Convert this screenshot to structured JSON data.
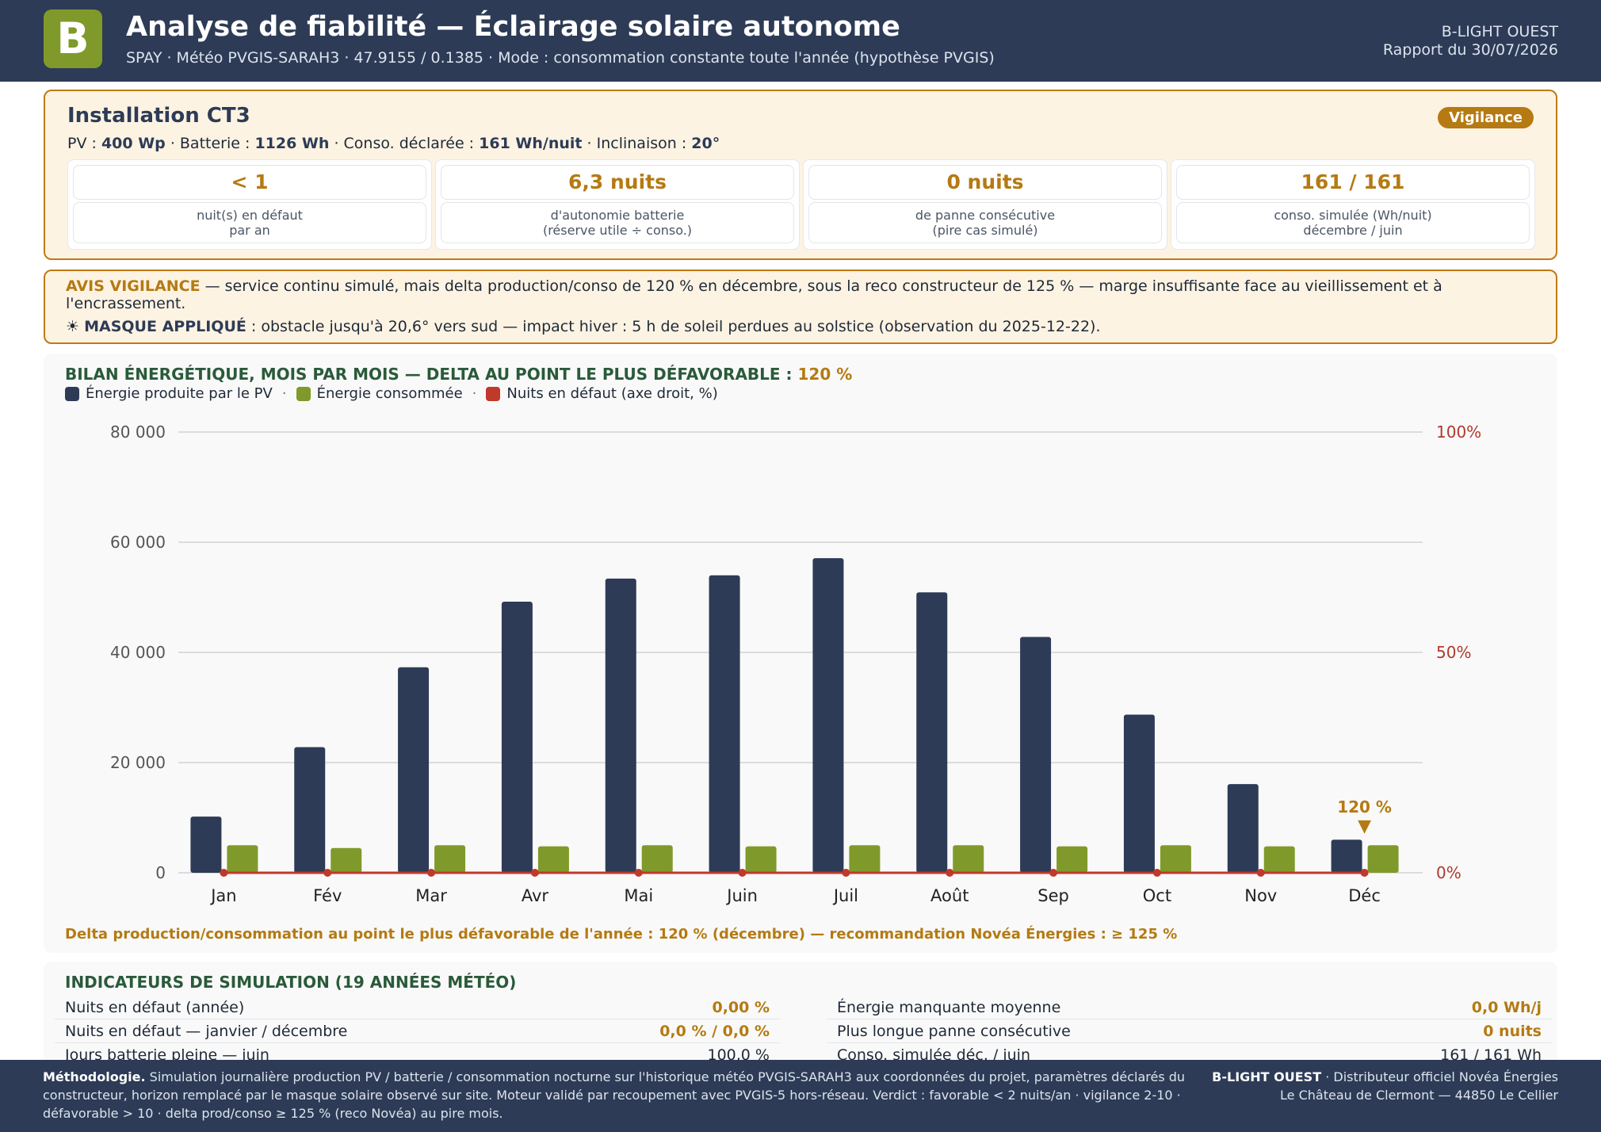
{
  "header": {
    "logo_letter": "B",
    "title": "Analyse de fiabilité — Éclairage solaire autonome",
    "subtitle": "SPAY · Météo PVGIS-SARAH3 · 47.9155 / 0.1385 · Mode : consommation constante toute l'année (hypothèse PVGIS)",
    "company": "B-LIGHT OUEST",
    "report_date": "Rapport du 30/07/2026"
  },
  "installation": {
    "title": "Installation CT3",
    "badge": "Vigilance",
    "pv_label": "PV : ",
    "pv_value": "400 Wp",
    "battery_label": " · Batterie : ",
    "battery_value": "1126 Wh",
    "conso_label": " · Conso. déclarée : ",
    "conso_value": "161 Wh/nuit",
    "tilt_label": " · Inclinaison : ",
    "tilt_value": "20°",
    "kpis": [
      {
        "value": "< 1",
        "label1": "nuit(s) en défaut",
        "label2": "par an"
      },
      {
        "value": "6,3 nuits",
        "label1": "d'autonomie batterie",
        "label2": "(réserve utile ÷ conso.)"
      },
      {
        "value": "0 nuits",
        "label1": "de panne consécutive",
        "label2": "(pire cas simulé)"
      },
      {
        "value": "161 / 161",
        "label1": "conso. simulée (Wh/nuit)",
        "label2": "décembre / juin"
      }
    ]
  },
  "avis": {
    "label": "AVIS VIGILANCE",
    "text": " — service continu simulé, mais delta production/conso de 120 % en décembre, sous la reco constructeur de 125 % — marge insuffisante face au vieillissement et à l'encrassement.",
    "mask_icon": "☀",
    "mask_label": "MASQUE APPLIQUÉ",
    "mask_text": " : obstacle jusqu'à 20,6° vers sud — impact hiver : 5 h de soleil perdues au solstice (observation du 2025-12-22)."
  },
  "chart_section": {
    "title": "BILAN ÉNERGÉTIQUE, MOIS PAR MOIS — DELTA AU POINT LE PLUS DÉFAVORABLE : ",
    "title_value": "120 %",
    "legend_sep": "·",
    "note": "Delta production/consommation au point le plus défavorable de l'année : 120 % (décembre) — recommandation Novéa Énergies : ≥ 125 %",
    "colors": {
      "production": "#2d3b56",
      "consumption": "#7f9a2a",
      "default": "#c0392b",
      "annotation": "#b57a12"
    }
  },
  "chart_data": {
    "type": "bar",
    "categories": [
      "Jan",
      "Fév",
      "Mar",
      "Avr",
      "Mai",
      "Juin",
      "Juil",
      "Août",
      "Sep",
      "Oct",
      "Nov",
      "Déc"
    ],
    "series": [
      {
        "name": "Énergie produite par le PV",
        "values": [
          10200,
          22800,
          37300,
          49200,
          53400,
          54000,
          57100,
          50900,
          42800,
          28700,
          16100,
          6000
        ]
      },
      {
        "name": "Énergie consommée",
        "values": [
          5000,
          4500,
          5000,
          4800,
          5000,
          4800,
          5000,
          5000,
          4800,
          5000,
          4800,
          5000
        ]
      },
      {
        "name": "Nuits en défaut (axe droit, %)",
        "type": "line",
        "axis": "right",
        "values": [
          0,
          0,
          0,
          0,
          0,
          0,
          0,
          0,
          0,
          0,
          0,
          0
        ]
      }
    ],
    "ylim": [
      0,
      80000
    ],
    "yticks": [
      0,
      20000,
      40000,
      60000,
      80000
    ],
    "ytick_labels": [
      "0",
      "20 000",
      "40 000",
      "60 000",
      "80 000"
    ],
    "y2lim": [
      0,
      100
    ],
    "y2ticks": [
      0,
      50,
      100
    ],
    "y2tick_labels": [
      "0%",
      "50%",
      "100%"
    ],
    "annotation": {
      "category": "Déc",
      "text": "120 %",
      "marker": "▼"
    },
    "grid": true,
    "legend": "top-left"
  },
  "indicators": {
    "title": "INDICATEURS DE SIMULATION (19 ANNÉES MÉTÉO)",
    "left": [
      {
        "label": "Nuits en défaut (année)",
        "value": "0,00 %",
        "highlight": true
      },
      {
        "label": "Nuits en défaut — janvier / décembre",
        "value": "0,0 % / 0,0 %",
        "highlight": true
      },
      {
        "label": "Jours batterie pleine — juin",
        "value": "100,0 %",
        "highlight": false
      }
    ],
    "right": [
      {
        "label": "Énergie manquante moyenne",
        "value": "0,0 Wh/j",
        "highlight": true
      },
      {
        "label": "Plus longue panne consécutive",
        "value": "0 nuits",
        "highlight": true
      },
      {
        "label": "Conso. simulée déc. / juin",
        "value": "161 / 161 Wh",
        "highlight": false
      }
    ]
  },
  "footer": {
    "method_label": "Méthodologie.",
    "method_text": " Simulation journalière production PV / batterie / consommation nocturne sur l'historique météo PVGIS-SARAH3 aux coordonnées du projet, paramètres déclarés du constructeur, horizon remplacé par le masque solaire observé sur site. Moteur validé par recoupement avec PVGIS-5 hors-réseau. Verdict : favorable < 2 nuits/an · vigilance 2-10 · défavorable > 10 · delta prod/conso ≥ 125 % (reco Novéa) au pire mois.",
    "company": "B-LIGHT OUEST",
    "company_tagline": " · Distributeur officiel Novéa Énergies",
    "address": "Le Château de Clermont — 44850 Le Cellier"
  }
}
